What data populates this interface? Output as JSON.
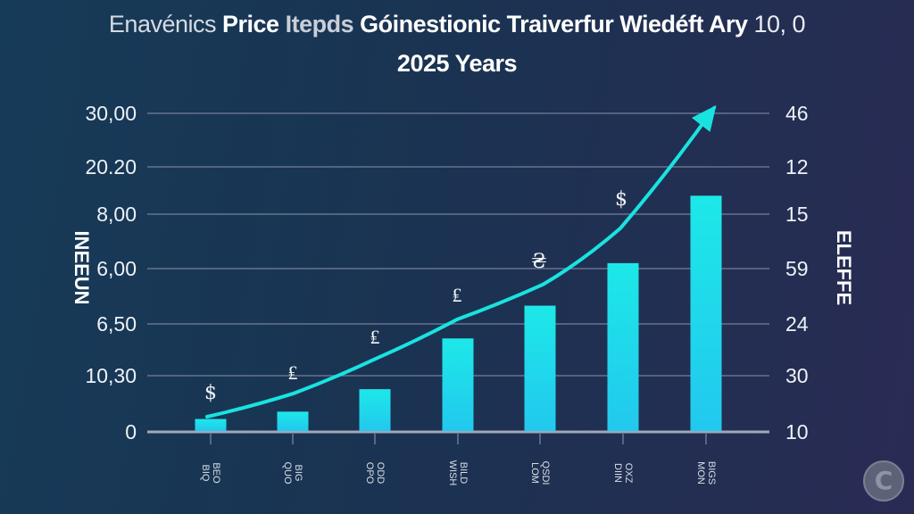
{
  "chart_data": {
    "type": "bar",
    "title_segments": [
      {
        "text": "Enavénics",
        "style": "dim"
      },
      {
        "text": "Price",
        "style": "bold"
      },
      {
        "text": "Itepds",
        "style": "ghost"
      },
      {
        "text": "Góinestionic Traiverfur Wiedéft Ary",
        "style": "bold"
      },
      {
        "text": "10, 0",
        "style": "light"
      }
    ],
    "title": "Enavénics Price Itepds Góinestionic Traiverfur Wiedéft Ary 10, 0",
    "subtitle": "2025 Years",
    "ylabel_left": "INEEUN",
    "ylabel_right": "ELEFFE",
    "y_ticks_left": [
      "0",
      "10,30",
      "6,50",
      "6,00",
      "8,00",
      "20.20",
      "30,00"
    ],
    "y_ticks_right": [
      "10",
      "30",
      "24",
      "59",
      "15",
      "12",
      "46"
    ],
    "y_scale_note": "values expressed in gridline-index units (0 = baseline, 6 = top gridline)",
    "ylim": [
      0,
      6
    ],
    "grid": true,
    "categories": [
      "BEO BIQ",
      "BIG QUO",
      "ODD OPO",
      "BILD WISH",
      "QSDI LOM",
      "OXZ DIIN",
      "BIGS MON"
    ],
    "series": [
      {
        "name": "bars",
        "kind": "bar",
        "values": [
          0.23,
          0.36,
          0.76,
          1.72,
          2.33,
          3.1,
          4.39
        ]
      },
      {
        "name": "trend",
        "kind": "line",
        "values": [
          0.27,
          0.69,
          1.32,
          2.08,
          2.71,
          3.74,
          6.1
        ],
        "arrow": true
      }
    ],
    "annotations": [
      "$",
      "₤",
      "₤",
      "₤",
      "₴",
      "$"
    ],
    "colors": {
      "bar_top": "#1de8e8",
      "bar_bottom": "#22c8ee",
      "line": "#19e3e0",
      "grid": "#7d8aa3",
      "baseline": "#a6afc0"
    }
  },
  "logo": {
    "glyph": "C"
  }
}
